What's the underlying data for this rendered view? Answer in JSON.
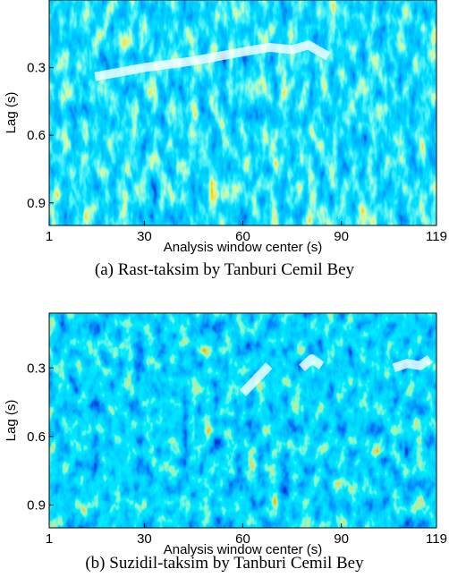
{
  "chart_data": [
    {
      "type": "heatmap",
      "caption": "(a) Rast-taksim by Tanburi Cemil Bey",
      "xlabel": "Analysis window center (s)",
      "ylabel": "Lag (s)",
      "xlim": [
        1,
        119
      ],
      "xticks": [
        1,
        30,
        60,
        90,
        119
      ],
      "ylim": [
        1,
        0
      ],
      "yticks": [
        0.3,
        0.6,
        0.9
      ],
      "overlay": {
        "color": "#ffffff",
        "x": [
          15,
          30,
          45,
          60,
          68,
          75,
          80,
          86
        ],
        "y": [
          0.34,
          0.3,
          0.27,
          0.23,
          0.21,
          0.22,
          0.2,
          0.25
        ]
      }
    },
    {
      "type": "heatmap",
      "caption": "(b) Suzidil-taksim by Tanburi Cemil Bey",
      "xlabel": "Analysis window center (s)",
      "ylabel": "Lag (s)",
      "xlim": [
        1,
        119
      ],
      "xticks": [
        1,
        30,
        60,
        90,
        119
      ],
      "ylim": [
        1,
        0.06
      ],
      "yticks": [
        0.3,
        0.6,
        0.9
      ],
      "overlay": {
        "color": "#ffffff",
        "x": [
          60,
          68,
          72,
          78,
          81,
          84,
          95,
          106,
          110,
          114,
          117
        ],
        "y": [
          0.41,
          0.29,
          null,
          0.3,
          0.26,
          0.29,
          null,
          0.3,
          0.28,
          0.29,
          0.26
        ]
      }
    }
  ]
}
